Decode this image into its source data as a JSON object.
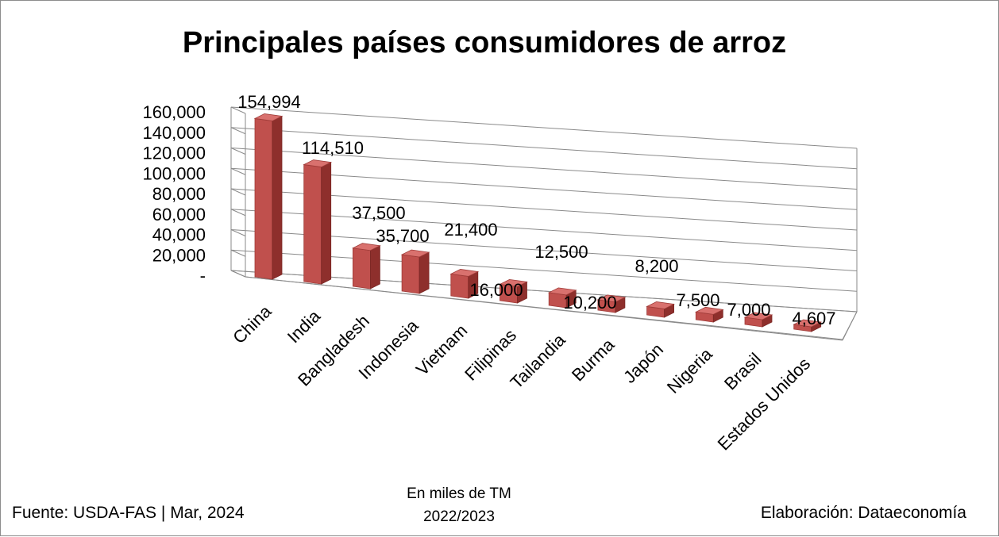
{
  "chart_data": {
    "type": "bar",
    "title": "Principales países consumidores de arroz",
    "categories": [
      "China",
      "India",
      "Bangladesh",
      "Indonesia",
      "Vietnam",
      "Filipinas",
      "Tailandia",
      "Burma",
      "Japón",
      "Nigeria",
      "Brasil",
      "Estados Unidos"
    ],
    "values": [
      154994,
      114510,
      37500,
      35700,
      21400,
      16000,
      12500,
      10200,
      8200,
      7500,
      7000,
      4607
    ],
    "value_labels": [
      "154,994",
      "114,510",
      "37,500",
      "35,700",
      "21,400",
      "16,000",
      "12,500",
      "10,200",
      "8,200",
      "7,500",
      "7,000",
      "4,607"
    ],
    "y_ticks": [
      "-",
      "20,000",
      "40,000",
      "60,000",
      "80,000",
      "100,000",
      "120,000",
      "140,000",
      "160,000"
    ],
    "ylim": [
      0,
      160000
    ],
    "grid": true,
    "style": "3d-column",
    "bar_color": "#c0504d"
  },
  "units_note": "En miles de TM",
  "period": "2022/2023",
  "source": "Fuente:  USDA-FAS | Mar, 2024",
  "credit": "Elaboración: Dataeconomía"
}
